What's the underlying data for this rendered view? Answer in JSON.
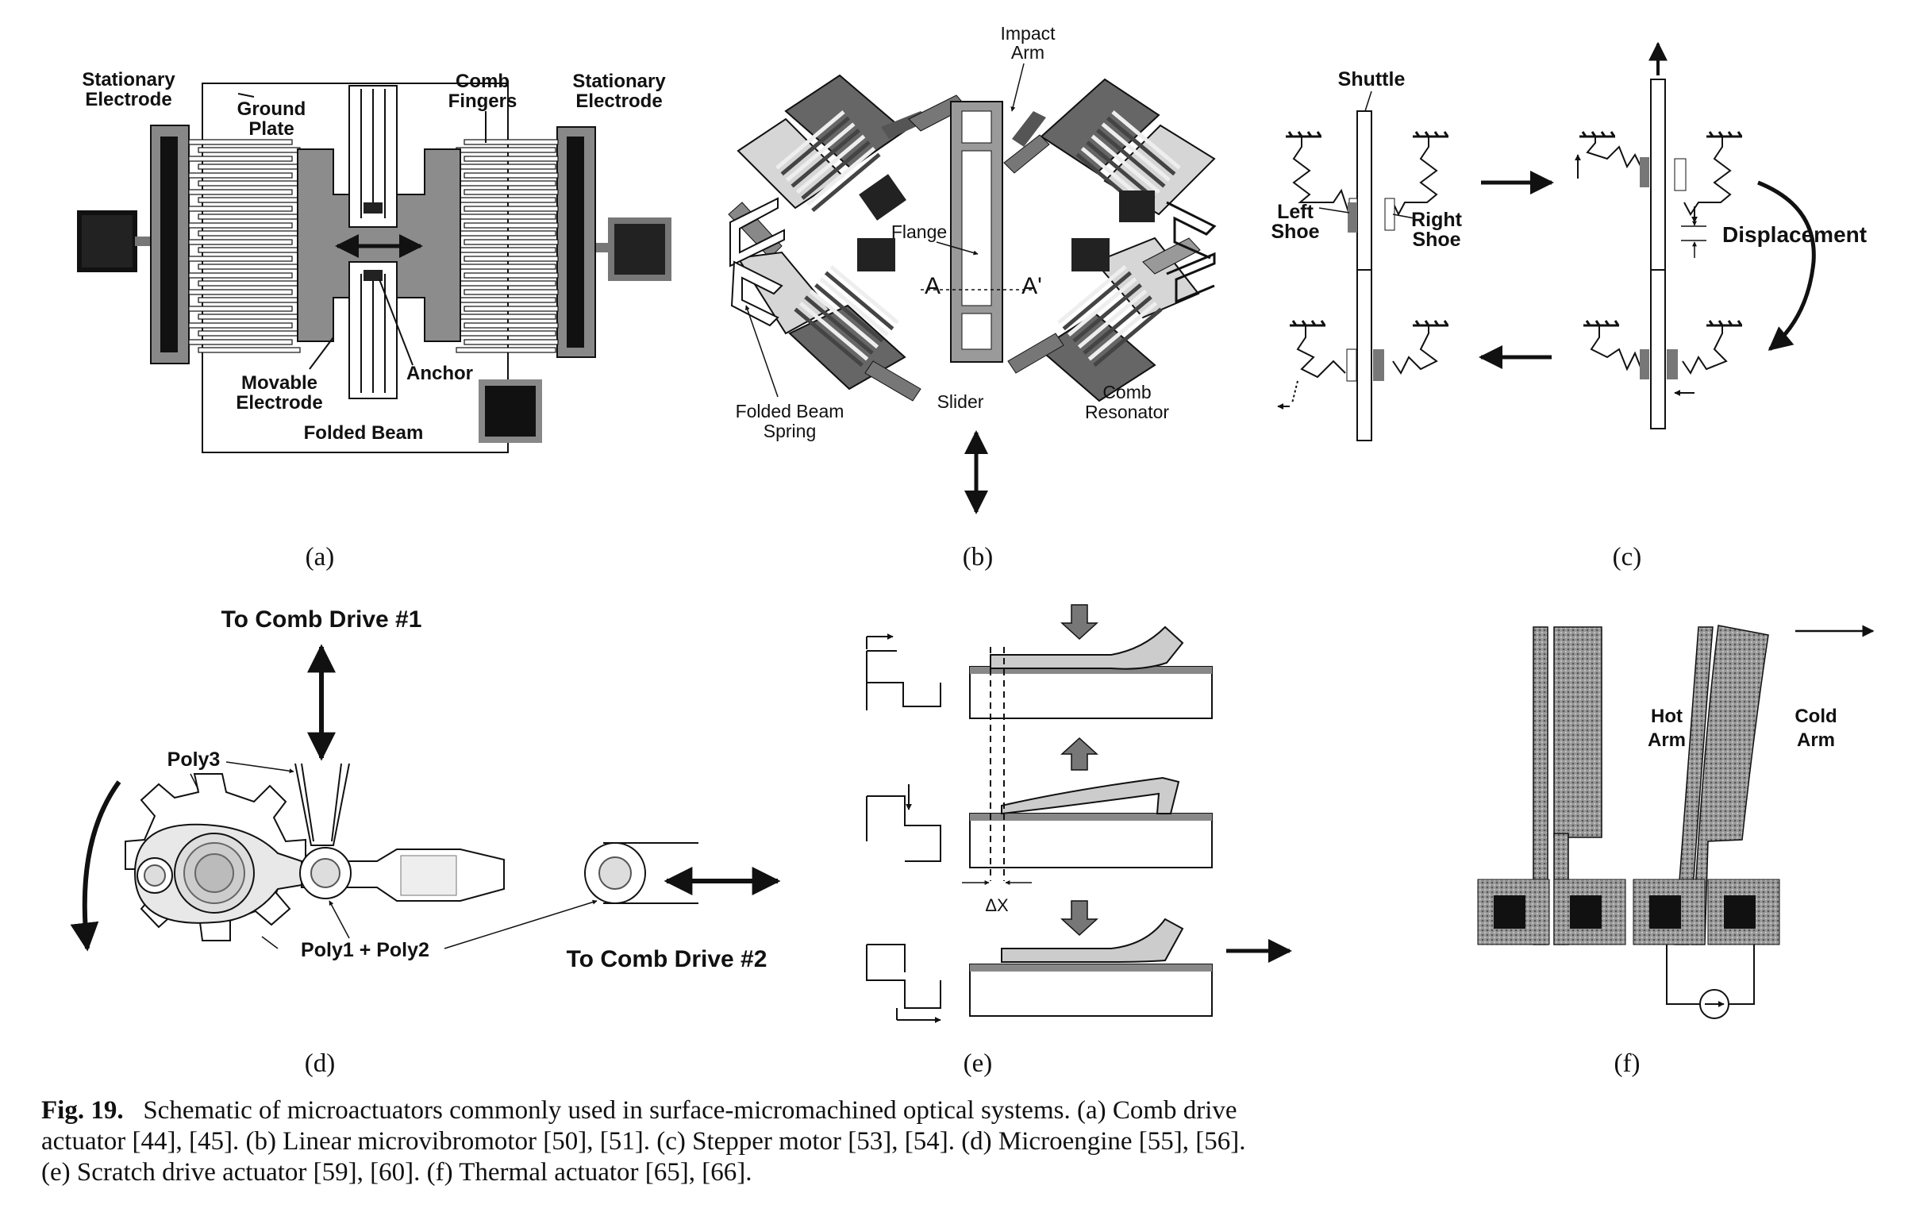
{
  "panels": {
    "a": {
      "letter": "(a)",
      "labels": {
        "stat_left_1": "Stationary",
        "stat_left_2": "Electrode",
        "ground_1": "Ground",
        "ground_2": "Plate",
        "comb_1": "Comb",
        "comb_2": "Fingers",
        "stat_right_1": "Stationary",
        "stat_right_2": "Electrode",
        "movable_1": "Movable",
        "movable_2": "Electrode",
        "anchor": "Anchor",
        "folded": "Folded Beam"
      }
    },
    "b": {
      "letter": "(b)",
      "labels": {
        "impact_1": "Impact",
        "impact_2": "Arm",
        "flange": "Flange",
        "a": "A",
        "a_prime": "A'",
        "folded_1": "Folded Beam",
        "folded_2": "Spring",
        "slider": "Slider",
        "comb_1": "Comb",
        "comb_2": "Resonator"
      }
    },
    "c": {
      "letter": "(c)",
      "labels": {
        "shuttle": "Shuttle",
        "left_1": "Left",
        "left_2": "Shoe",
        "right_1": "Right",
        "right_2": "Shoe",
        "displacement": "Displacement"
      }
    },
    "d": {
      "letter": "(d)",
      "labels": {
        "drive1": "To Comb Drive #1",
        "poly3": "Poly3",
        "poly12": "Poly1 + Poly2",
        "drive2": "To Comb Drive #2"
      }
    },
    "e": {
      "letter": "(e)",
      "labels": {
        "dx": "ΔX"
      }
    },
    "f": {
      "letter": "(f)",
      "labels": {
        "hot_1": "Hot",
        "hot_2": "Arm",
        "cold_1": "Cold",
        "cold_2": "Arm"
      }
    }
  },
  "caption": {
    "fig": "Fig. 19.",
    "text": "Schematic of microactuators commonly used in surface-micromachined optical systems. (a) Comb drive actuator [44], [45]. (b) Linear microvibromotor [50], [51]. (c) Stepper motor [53], [54]. (d) Microengine [55], [56]. (e) Scratch drive actuator [59], [60]. (f) Thermal actuator [65], [66]."
  },
  "colors": {
    "ink": "#111111",
    "gray": "#8a8a8a",
    "light": "#c8c8c8",
    "dark": "#1a1a1a"
  }
}
